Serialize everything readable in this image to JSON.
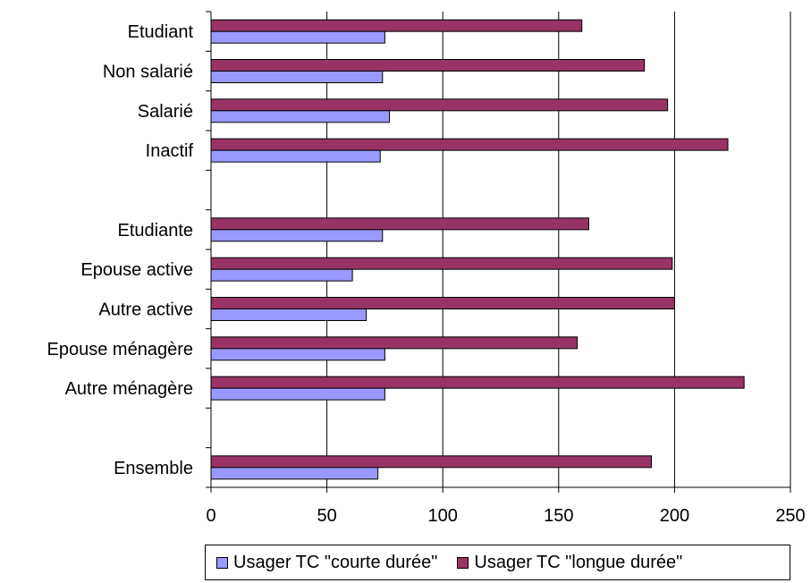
{
  "chart_data": {
    "type": "bar",
    "orientation": "horizontal",
    "categories": [
      "Etudiant",
      "Non salarié",
      "Salarié",
      "Inactif",
      "",
      "Etudiante",
      "Epouse active",
      "Autre active",
      "Epouse ménagère",
      "Autre ménagère",
      "",
      "Ensemble"
    ],
    "series": [
      {
        "name": "Usager TC \"courte durée\"",
        "color": "#9999ff",
        "values": [
          75,
          74,
          77,
          73,
          null,
          74,
          61,
          67,
          75,
          75,
          null,
          72
        ]
      },
      {
        "name": "Usager TC \"longue durée\"",
        "color": "#993366",
        "values": [
          160,
          187,
          197,
          223,
          null,
          163,
          199,
          200,
          158,
          230,
          null,
          190
        ]
      }
    ],
    "xlim": [
      0,
      250
    ],
    "xticks": [
      "0",
      "50",
      "100",
      "150",
      "200",
      "250"
    ],
    "grid": "vertical",
    "legend": "bottom"
  }
}
